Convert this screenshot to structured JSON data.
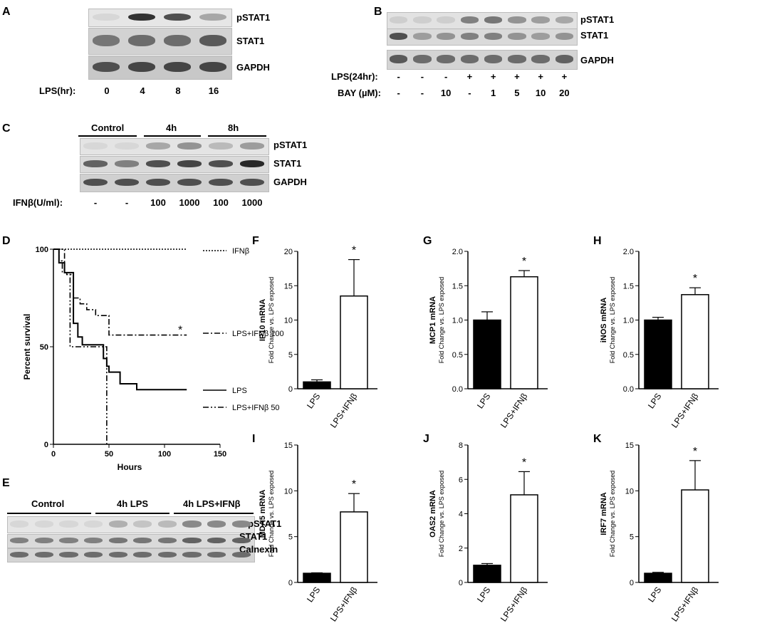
{
  "panel_labels": [
    "A",
    "B",
    "C",
    "D",
    "E",
    "F",
    "G",
    "H",
    "I",
    "J",
    "K"
  ],
  "panelA": {
    "rows": [
      "pSTAT1",
      "STAT1",
      "GAPDH"
    ],
    "lane_title": "LPS(hr):",
    "lanes": [
      "0",
      "4",
      "8",
      "16"
    ],
    "intensity": {
      "pSTAT1": [
        0.05,
        0.9,
        0.75,
        0.3
      ],
      "STAT1": [
        0.55,
        0.6,
        0.6,
        0.7
      ],
      "GAPDH": [
        0.75,
        0.8,
        0.8,
        0.8
      ]
    }
  },
  "panelB": {
    "rows": [
      "pSTAT1",
      "STAT1",
      "GAPDH"
    ],
    "lps_title": "LPS(24hr):",
    "lps": [
      "-",
      "-",
      "-",
      "+",
      "+",
      "+",
      "+",
      "+"
    ],
    "bay_title": "BAY (µM):",
    "bay": [
      "-",
      "-",
      "10",
      "-",
      "1",
      "5",
      "10",
      "20"
    ],
    "intensity": {
      "pSTAT1": [
        0.1,
        0.1,
        0.1,
        0.5,
        0.55,
        0.4,
        0.35,
        0.3
      ],
      "STAT1": [
        0.75,
        0.35,
        0.4,
        0.5,
        0.5,
        0.4,
        0.35,
        0.4
      ],
      "GAPDH": [
        0.7,
        0.6,
        0.6,
        0.6,
        0.6,
        0.6,
        0.6,
        0.65
      ]
    }
  },
  "panelC": {
    "groups": [
      "Control",
      "4h",
      "8h"
    ],
    "rows": [
      "pSTAT1",
      "STAT1",
      "GAPDH"
    ],
    "lane_title": "IFNβ(U/ml):",
    "lanes": [
      "-",
      "-",
      "100",
      "1000",
      "100",
      "1000"
    ],
    "intensity": {
      "pSTAT1": [
        0.05,
        0.05,
        0.3,
        0.4,
        0.2,
        0.35
      ],
      "STAT1": [
        0.65,
        0.5,
        0.75,
        0.8,
        0.75,
        0.95
      ],
      "GAPDH": [
        0.75,
        0.75,
        0.75,
        0.75,
        0.75,
        0.75
      ]
    }
  },
  "panelD": {
    "ylabel": "Percent survival",
    "xlabel": "Hours",
    "xticks": [
      "0",
      "50",
      "100",
      "150"
    ],
    "yticks": [
      "0",
      "50",
      "100"
    ],
    "legend": [
      "IFNβ",
      "LPS+IFNβ 100",
      "LPS",
      "LPS+IFNβ 50"
    ],
    "star": "*"
  },
  "panelE": {
    "groups": [
      "Control",
      "4h LPS",
      "4h LPS+IFNβ"
    ],
    "rows": [
      "pSTAT1",
      "STAT1",
      "Calnexin"
    ],
    "intensity": {
      "pSTAT1": [
        0.05,
        0.05,
        0.05,
        0.05,
        0.25,
        0.15,
        0.2,
        0.45,
        0.45,
        0.45
      ],
      "STAT1": [
        0.5,
        0.5,
        0.5,
        0.5,
        0.55,
        0.55,
        0.55,
        0.65,
        0.65,
        0.65
      ],
      "Calnexin": [
        0.6,
        0.6,
        0.6,
        0.6,
        0.6,
        0.6,
        0.6,
        0.6,
        0.6,
        0.6
      ]
    }
  },
  "chart_data": [
    {
      "type": "line",
      "title": "",
      "xlabel": "Hours",
      "ylabel": "Percent survival",
      "xlim": [
        0,
        150
      ],
      "ylim": [
        0,
        100
      ],
      "series": [
        {
          "name": "IFNβ",
          "style": "dotted",
          "x": [
            0,
            120
          ],
          "y": [
            100,
            100
          ]
        },
        {
          "name": "LPS+IFNβ 100",
          "style": "dash-dot",
          "x": [
            0,
            5,
            5,
            8,
            8,
            12,
            12,
            18,
            18,
            24,
            24,
            30,
            30,
            38,
            38,
            50,
            50,
            120
          ],
          "y": [
            100,
            100,
            94,
            94,
            88,
            88,
            87,
            87,
            75,
            75,
            72,
            72,
            69,
            69,
            66,
            66,
            56,
            56
          ]
        },
        {
          "name": "LPS",
          "style": "solid",
          "x": [
            0,
            5,
            5,
            10,
            10,
            18,
            18,
            22,
            22,
            26,
            26,
            45,
            45,
            48,
            48,
            50,
            50,
            60,
            60,
            75,
            75,
            120
          ],
          "y": [
            100,
            100,
            93,
            93,
            88,
            88,
            62,
            62,
            55,
            55,
            51,
            51,
            44,
            44,
            40,
            40,
            37,
            37,
            31,
            31,
            28,
            28
          ]
        },
        {
          "name": "LPS+IFNβ 50",
          "style": "dash-dot-dot",
          "x": [
            0,
            10,
            10,
            15,
            15,
            48,
            48
          ],
          "y": [
            100,
            100,
            88,
            88,
            50,
            50,
            0
          ]
        }
      ]
    },
    {
      "type": "bar",
      "panel": "F",
      "ylabel": "IP10 mRNA",
      "sublabel": "Fold Change vs. LPS exposed",
      "categories": [
        "LPS",
        "LPS+IFNβ"
      ],
      "values": [
        1.0,
        13.5
      ],
      "errors": [
        0.3,
        5.3
      ],
      "ylim": [
        0,
        20
      ],
      "yticks": [
        "0",
        "5",
        "10",
        "15",
        "20"
      ],
      "star": "*"
    },
    {
      "type": "bar",
      "panel": "G",
      "ylabel": "MCP1 mRNA",
      "sublabel": "Fold Change vs. LPS exposed",
      "categories": [
        "LPS",
        "LPS+IFNβ"
      ],
      "values": [
        1.0,
        1.63
      ],
      "errors": [
        0.12,
        0.09
      ],
      "ylim": [
        0,
        2.0
      ],
      "yticks": [
        "0.0",
        "0.5",
        "1.0",
        "1.5",
        "2.0"
      ],
      "star": "*"
    },
    {
      "type": "bar",
      "panel": "H",
      "ylabel": "iNOS mRNA",
      "sublabel": "Fold Change vs. LPS exposed",
      "categories": [
        "LPS",
        "LPS+IFNβ"
      ],
      "values": [
        1.0,
        1.37
      ],
      "errors": [
        0.04,
        0.1
      ],
      "ylim": [
        0,
        2.0
      ],
      "yticks": [
        "0.0",
        "0.5",
        "1.0",
        "1.5",
        "2.0"
      ],
      "star": "*"
    },
    {
      "type": "bar",
      "panel": "I",
      "ylabel": "MDA5 mRNA",
      "sublabel": "Fold Change vs. LPS exposed",
      "categories": [
        "LPS",
        "LPS+IFNβ"
      ],
      "values": [
        1.0,
        7.7
      ],
      "errors": [
        0.05,
        2.0
      ],
      "ylim": [
        0,
        15
      ],
      "yticks": [
        "0",
        "5",
        "10",
        "15"
      ],
      "star": "*"
    },
    {
      "type": "bar",
      "panel": "J",
      "ylabel": "OAS2 mRNA",
      "sublabel": "Fold Change vs. LPS exposed",
      "categories": [
        "LPS",
        "LPS+IFNβ"
      ],
      "values": [
        1.0,
        5.1
      ],
      "errors": [
        0.1,
        1.35
      ],
      "ylim": [
        0,
        8
      ],
      "yticks": [
        "0",
        "2",
        "4",
        "6",
        "8"
      ],
      "star": "*"
    },
    {
      "type": "bar",
      "panel": "K",
      "ylabel": "IRF7 mRNA",
      "sublabel": "Fold Change vs. LPS exposed",
      "categories": [
        "LPS",
        "LPS+IFNβ"
      ],
      "values": [
        1.0,
        10.1
      ],
      "errors": [
        0.1,
        3.2
      ],
      "ylim": [
        0,
        15
      ],
      "yticks": [
        "0",
        "5",
        "10",
        "15"
      ],
      "star": "*"
    }
  ]
}
